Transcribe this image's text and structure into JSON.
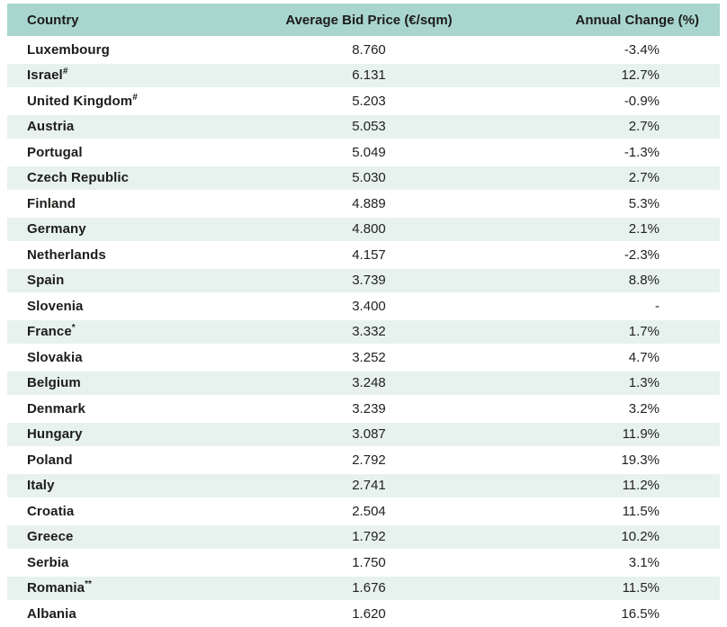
{
  "table": {
    "columns": [
      {
        "label": "Country"
      },
      {
        "label": "Average Bid Price (€/sqm)"
      },
      {
        "label": "Annual Change (%)"
      }
    ],
    "rows": [
      {
        "country": "Luxembourg",
        "sup": "",
        "price": "8.760",
        "change": "-3.4%"
      },
      {
        "country": "Israel",
        "sup": "#",
        "price": "6.131",
        "change": "12.7%"
      },
      {
        "country": "United Kingdom",
        "sup": "#",
        "price": "5.203",
        "change": "-0.9%"
      },
      {
        "country": "Austria",
        "sup": "",
        "price": "5.053",
        "change": "2.7%"
      },
      {
        "country": "Portugal",
        "sup": "",
        "price": "5.049",
        "change": "-1.3%"
      },
      {
        "country": "Czech Republic",
        "sup": "",
        "price": "5.030",
        "change": "2.7%"
      },
      {
        "country": "Finland",
        "sup": "",
        "price": "4.889",
        "change": "5.3%"
      },
      {
        "country": "Germany",
        "sup": "",
        "price": "4.800",
        "change": "2.1%"
      },
      {
        "country": "Netherlands",
        "sup": "",
        "price": "4.157",
        "change": "-2.3%"
      },
      {
        "country": "Spain",
        "sup": "",
        "price": "3.739",
        "change": "8.8%"
      },
      {
        "country": "Slovenia",
        "sup": "",
        "price": "3.400",
        "change": "-"
      },
      {
        "country": "France",
        "sup": "*",
        "price": "3.332",
        "change": "1.7%"
      },
      {
        "country": "Slovakia",
        "sup": "",
        "price": "3.252",
        "change": "4.7%"
      },
      {
        "country": "Belgium",
        "sup": "",
        "price": "3.248",
        "change": "1.3%"
      },
      {
        "country": "Denmark",
        "sup": "",
        "price": "3.239",
        "change": "3.2%"
      },
      {
        "country": "Hungary",
        "sup": "",
        "price": "3.087",
        "change": "11.9%"
      },
      {
        "country": "Poland",
        "sup": "",
        "price": "2.792",
        "change": "19.3%"
      },
      {
        "country": "Italy",
        "sup": "",
        "price": "2.741",
        "change": "11.2%"
      },
      {
        "country": "Croatia",
        "sup": "",
        "price": "2.504",
        "change": "11.5%"
      },
      {
        "country": "Greece",
        "sup": "",
        "price": "1.792",
        "change": "10.2%"
      },
      {
        "country": "Serbia",
        "sup": "",
        "price": "1.750",
        "change": "3.1%"
      },
      {
        "country": "Romania",
        "sup": "**",
        "price": "1.676",
        "change": "11.5%"
      },
      {
        "country": "Albania",
        "sup": "",
        "price": "1.620",
        "change": "16.5%"
      }
    ]
  },
  "colors": {
    "header_background": "#a9d5cf",
    "alt_row_background": "#e7f2ef",
    "row_background": "#ffffff",
    "text": "#1c1c1a",
    "bottom_edge": "#d2e9e5"
  },
  "chart_data": {
    "type": "table",
    "title": "",
    "columns": [
      "Country",
      "Average Bid Price (€/sqm)",
      "Annual Change (%)"
    ],
    "rows": [
      [
        "Luxembourg",
        "8.760",
        "-3.4%"
      ],
      [
        "Israel#",
        "6.131",
        "12.7%"
      ],
      [
        "United Kingdom#",
        "5.203",
        "-0.9%"
      ],
      [
        "Austria",
        "5.053",
        "2.7%"
      ],
      [
        "Portugal",
        "5.049",
        "-1.3%"
      ],
      [
        "Czech Republic",
        "5.030",
        "2.7%"
      ],
      [
        "Finland",
        "4.889",
        "5.3%"
      ],
      [
        "Germany",
        "4.800",
        "2.1%"
      ],
      [
        "Netherlands",
        "4.157",
        "-2.3%"
      ],
      [
        "Spain",
        "3.739",
        "8.8%"
      ],
      [
        "Slovenia",
        "3.400",
        "-"
      ],
      [
        "France*",
        "3.332",
        "1.7%"
      ],
      [
        "Slovakia",
        "3.252",
        "4.7%"
      ],
      [
        "Belgium",
        "3.248",
        "1.3%"
      ],
      [
        "Denmark",
        "3.239",
        "3.2%"
      ],
      [
        "Hungary",
        "3.087",
        "11.9%"
      ],
      [
        "Poland",
        "2.792",
        "19.3%"
      ],
      [
        "Italy",
        "2.741",
        "11.2%"
      ],
      [
        "Croatia",
        "2.504",
        "11.5%"
      ],
      [
        "Greece",
        "1.792",
        "10.2%"
      ],
      [
        "Serbia",
        "1.750",
        "3.1%"
      ],
      [
        "Romania**",
        "1.676",
        "11.5%"
      ],
      [
        "Albania",
        "1.620",
        "16.5%"
      ]
    ]
  }
}
